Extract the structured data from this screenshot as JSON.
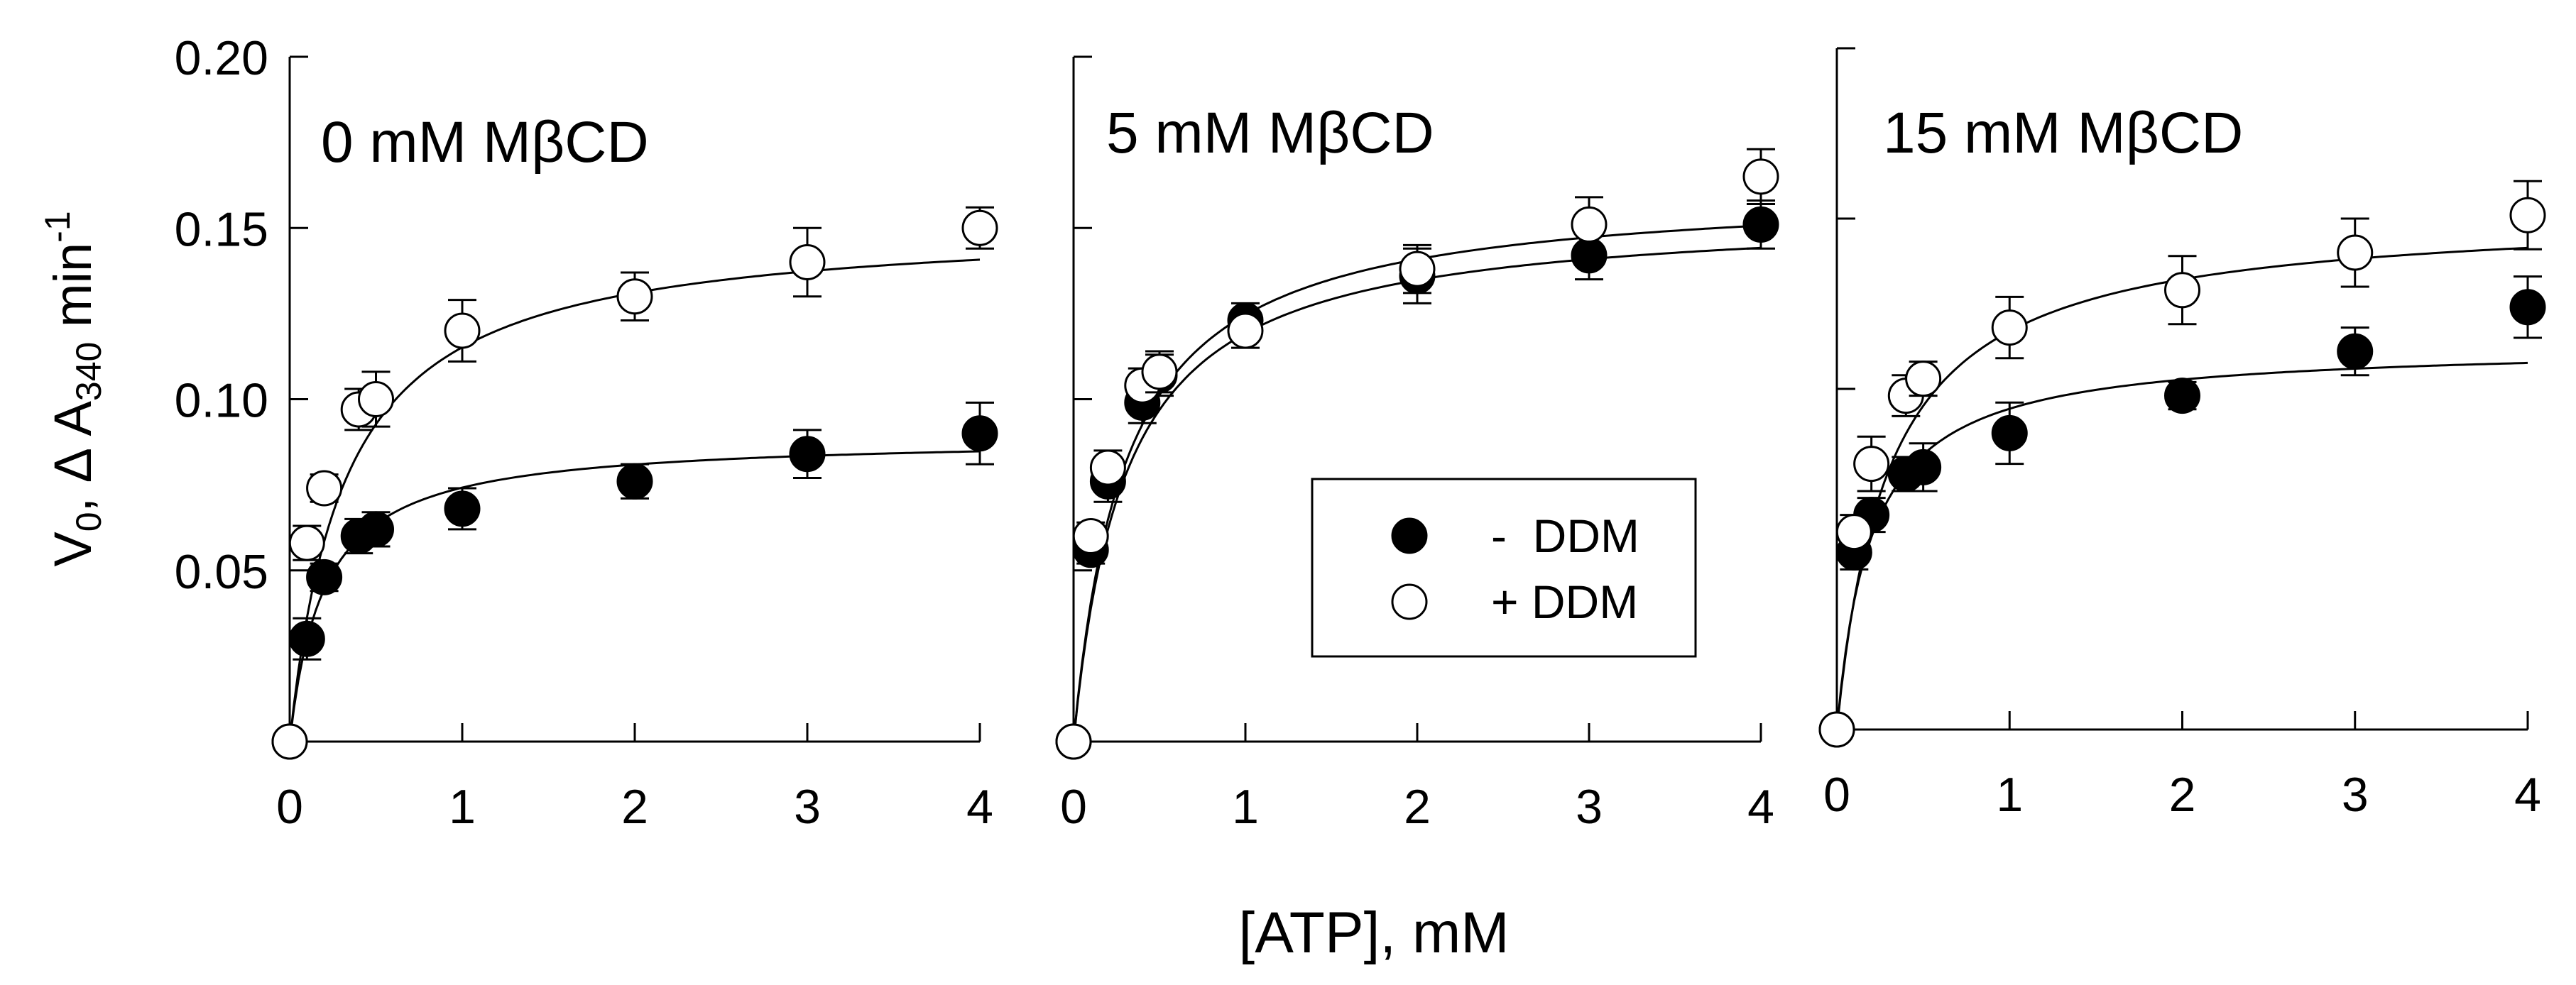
{
  "figure": {
    "ylabel_main": "V",
    "ylabel_sub0": "0",
    "ylabel_mid": ", Δ A",
    "ylabel_sub340": "340",
    "ylabel_unit": " min",
    "ylabel_sup": "-1",
    "xlabel": "[ATP], mM"
  },
  "legend": {
    "items": [
      {
        "label": "-  DDM",
        "marker": "filled"
      },
      {
        "label": "+ DDM",
        "marker": "open"
      }
    ]
  },
  "colors": {
    "ink": "#000000",
    "background": "#ffffff"
  },
  "chart_data": [
    {
      "type": "scatter",
      "title": "0 mM MβCD",
      "xlabel": "[ATP], mM",
      "ylabel": "V0, Δ A340 min-1",
      "xlim": [
        0,
        4
      ],
      "ylim": [
        0,
        0.2
      ],
      "xticks": [
        0,
        1,
        2,
        3,
        4
      ],
      "xtick_labels": [
        "0",
        "1",
        "2",
        "3",
        "4"
      ],
      "yticks": [
        0.05,
        0.1,
        0.15,
        0.2
      ],
      "ytick_labels": [
        "0.05",
        "0.10",
        "0.15",
        "0.20"
      ],
      "series": [
        {
          "name": "- DDM",
          "marker": "filled",
          "x": [
            0,
            0.1,
            0.2,
            0.4,
            0.5,
            1,
            2,
            3,
            4
          ],
          "y": [
            0,
            0.03,
            0.048,
            0.06,
            0.062,
            0.068,
            0.076,
            0.084,
            0.09
          ],
          "err": [
            0,
            0.006,
            0.004,
            0.005,
            0.005,
            0.006,
            0.005,
            0.007,
            0.009
          ],
          "fit": {
            "vmax": 0.089,
            "km": 0.2
          }
        },
        {
          "name": "+ DDM",
          "marker": "open",
          "x": [
            0,
            0.1,
            0.2,
            0.4,
            0.5,
            1,
            2,
            3,
            4
          ],
          "y": [
            0,
            0.058,
            0.074,
            0.097,
            0.1,
            0.12,
            0.13,
            0.14,
            0.15
          ],
          "err": [
            0,
            0.005,
            0.004,
            0.006,
            0.008,
            0.009,
            0.007,
            0.01,
            0.006
          ],
          "fit": {
            "vmax": 0.152,
            "km": 0.32
          }
        }
      ]
    },
    {
      "type": "scatter",
      "title": "5 mM MβCD",
      "xlabel": "[ATP], mM",
      "ylabel": "V0, Δ A340 min-1",
      "xlim": [
        0,
        4
      ],
      "ylim": [
        0,
        0.2
      ],
      "xticks": [
        0,
        1,
        2,
        3,
        4
      ],
      "xtick_labels": [
        "0",
        "1",
        "2",
        "3",
        "4"
      ],
      "yticks": [
        0.05,
        0.1,
        0.15,
        0.2
      ],
      "ytick_labels": [],
      "series": [
        {
          "name": "- DDM",
          "marker": "filled",
          "x": [
            0,
            0.1,
            0.2,
            0.4,
            0.5,
            1,
            2,
            3,
            4
          ],
          "y": [
            0,
            0.056,
            0.076,
            0.099,
            0.107,
            0.123,
            0.136,
            0.142,
            0.151
          ],
          "err": [
            0,
            0.004,
            0.006,
            0.006,
            0.006,
            0.005,
            0.008,
            0.007,
            0.007
          ],
          "fit": {
            "vmax": 0.155,
            "km": 0.3
          }
        },
        {
          "name": "+ DDM",
          "marker": "open",
          "x": [
            0,
            0.1,
            0.2,
            0.4,
            0.5,
            1,
            2,
            3,
            4
          ],
          "y": [
            0,
            0.06,
            0.08,
            0.104,
            0.108,
            0.12,
            0.138,
            0.151,
            0.165
          ],
          "err": [
            0,
            0.004,
            0.005,
            0.005,
            0.006,
            0.005,
            0.007,
            0.008,
            0.008
          ],
          "fit": {
            "vmax": 0.162,
            "km": 0.3
          }
        }
      ]
    },
    {
      "type": "scatter",
      "title": "15 mM MβCD",
      "xlabel": "[ATP], mM",
      "ylabel": "V0, Δ A340 min-1",
      "xlim": [
        0,
        4
      ],
      "ylim": [
        0,
        0.2
      ],
      "xticks": [
        0,
        1,
        2,
        3,
        4
      ],
      "xtick_labels": [
        "0",
        "1",
        "2",
        "3",
        "4"
      ],
      "yticks": [
        0.05,
        0.1,
        0.15,
        0.2
      ],
      "ytick_labels": [],
      "series": [
        {
          "name": "- DDM",
          "marker": "filled",
          "x": [
            0,
            0.1,
            0.2,
            0.4,
            0.5,
            1,
            2,
            3,
            4
          ],
          "y": [
            0,
            0.052,
            0.063,
            0.075,
            0.077,
            0.087,
            0.098,
            0.111,
            0.124
          ],
          "err": [
            0,
            0.005,
            0.005,
            0.005,
            0.007,
            0.009,
            0.004,
            0.007,
            0.009
          ],
          "fit": {
            "vmax": 0.113,
            "km": 0.2
          }
        },
        {
          "name": "+ DDM",
          "marker": "open",
          "x": [
            0,
            0.1,
            0.2,
            0.4,
            0.5,
            1,
            2,
            3,
            4
          ],
          "y": [
            0,
            0.058,
            0.078,
            0.098,
            0.103,
            0.118,
            0.129,
            0.14,
            0.151
          ],
          "err": [
            0,
            0.005,
            0.008,
            0.006,
            0.005,
            0.009,
            0.01,
            0.01,
            0.01
          ],
          "fit": {
            "vmax": 0.152,
            "km": 0.3
          }
        }
      ]
    }
  ]
}
